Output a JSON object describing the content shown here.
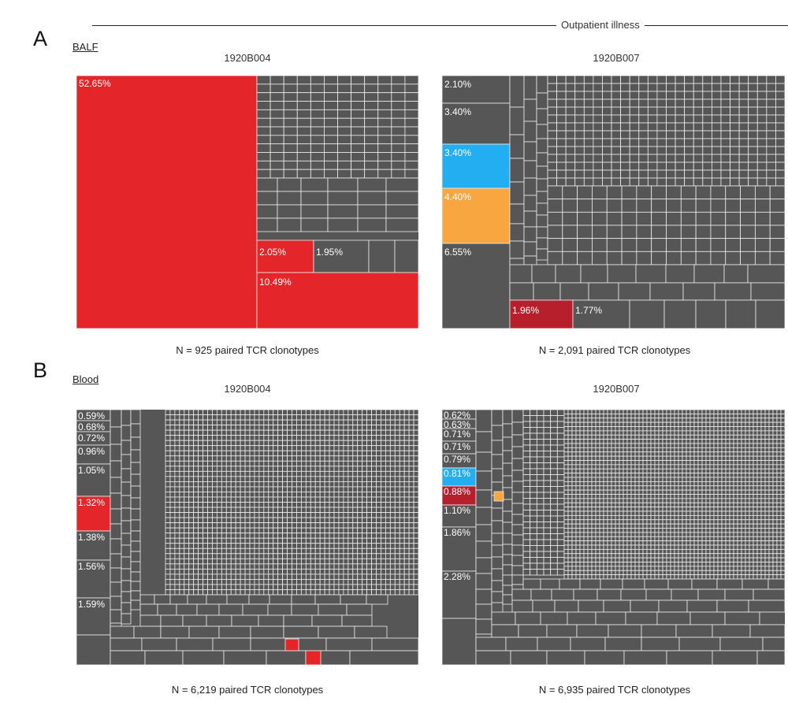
{
  "header": {
    "group_label": "Outpatient illness"
  },
  "colors": {
    "tile": "#565656",
    "tile_border": "#eeeeee",
    "red": "#e4262a",
    "dark_red": "#b81f2c",
    "blue": "#22aef0",
    "orange": "#f7a640"
  },
  "panels": {
    "A": {
      "letter": "A",
      "tissue": "BALF"
    },
    "B": {
      "letter": "B",
      "tissue": "Blood"
    }
  },
  "chart_data": [
    {
      "type": "treemap",
      "panel": "A",
      "tissue": "BALF",
      "title": "1920B004",
      "caption": "N = 925 paired TCR clonotypes",
      "labeled_tiles": [
        {
          "label": "52.65%",
          "value": 52.65,
          "color": "red"
        },
        {
          "label": "10.49%",
          "value": 10.49,
          "color": "red"
        },
        {
          "label": "2.05%",
          "value": 2.05,
          "color": "red"
        },
        {
          "label": "1.95%",
          "value": 1.95,
          "color": "tile"
        }
      ]
    },
    {
      "type": "treemap",
      "panel": "A",
      "tissue": "BALF",
      "title": "1920B007",
      "caption": "N = 2,091 paired TCR clonotypes",
      "labeled_tiles": [
        {
          "label": "2.10%",
          "value": 2.1,
          "color": "tile"
        },
        {
          "label": "3.40%",
          "value": 3.4,
          "color": "tile"
        },
        {
          "label": "3.40%",
          "value": 3.4,
          "color": "blue"
        },
        {
          "label": "4.40%",
          "value": 4.4,
          "color": "orange"
        },
        {
          "label": "6.55%",
          "value": 6.55,
          "color": "tile"
        },
        {
          "label": "1.96%",
          "value": 1.96,
          "color": "dark_red"
        },
        {
          "label": "1.77%",
          "value": 1.77,
          "color": "tile"
        }
      ]
    },
    {
      "type": "treemap",
      "panel": "B",
      "tissue": "Blood",
      "title": "1920B004",
      "caption": "N = 6,219 paired TCR clonotypes",
      "labeled_tiles": [
        {
          "label": "0.59%",
          "value": 0.59,
          "color": "tile"
        },
        {
          "label": "0.68%",
          "value": 0.68,
          "color": "tile"
        },
        {
          "label": "0.72%",
          "value": 0.72,
          "color": "tile"
        },
        {
          "label": "0.96%",
          "value": 0.96,
          "color": "tile"
        },
        {
          "label": "1.05%",
          "value": 1.05,
          "color": "tile"
        },
        {
          "label": "1.32%",
          "value": 1.32,
          "color": "red"
        },
        {
          "label": "1.38%",
          "value": 1.38,
          "color": "tile"
        },
        {
          "label": "1.56%",
          "value": 1.56,
          "color": "tile"
        },
        {
          "label": "1.59%",
          "value": 1.59,
          "color": "tile"
        }
      ]
    },
    {
      "type": "treemap",
      "panel": "B",
      "tissue": "Blood",
      "title": "1920B007",
      "caption": "N = 6,935 paired TCR clonotypes",
      "labeled_tiles": [
        {
          "label": "0.62%",
          "value": 0.62,
          "color": "tile"
        },
        {
          "label": "0.63%",
          "value": 0.63,
          "color": "tile"
        },
        {
          "label": "0.71%",
          "value": 0.71,
          "color": "tile"
        },
        {
          "label": "0.71%",
          "value": 0.71,
          "color": "tile"
        },
        {
          "label": "0.79%",
          "value": 0.79,
          "color": "tile"
        },
        {
          "label": "0.81%",
          "value": 0.81,
          "color": "blue"
        },
        {
          "label": "0.88%",
          "value": 0.88,
          "color": "dark_red"
        },
        {
          "label": "1.10%",
          "value": 1.1,
          "color": "tile"
        },
        {
          "label": "1.86%",
          "value": 1.86,
          "color": "tile"
        },
        {
          "label": "2.28%",
          "value": 2.28,
          "color": "tile"
        }
      ]
    }
  ]
}
